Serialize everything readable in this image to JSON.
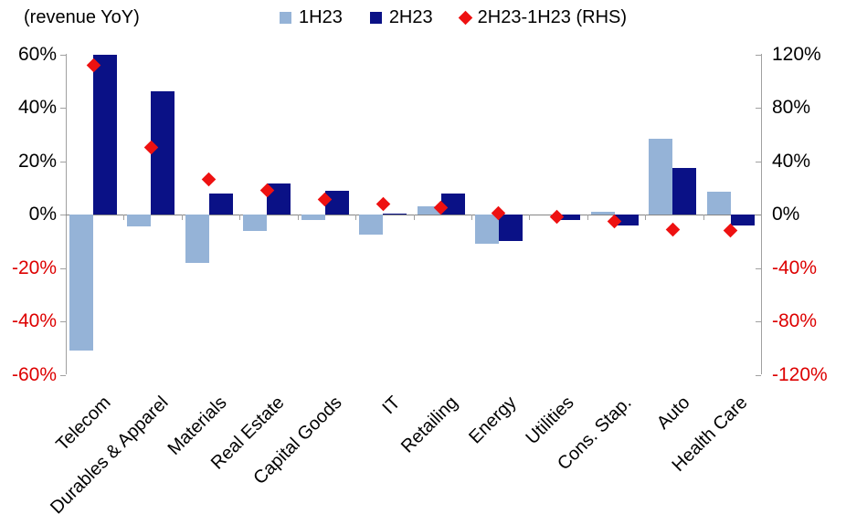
{
  "title": "(revenue YoY)",
  "legend": {
    "items": [
      {
        "label": "1H23",
        "marker": "square-light"
      },
      {
        "label": "2H23",
        "marker": "square-dark"
      },
      {
        "label": "2H23-1H23 (RHS)",
        "marker": "diamond-red"
      }
    ]
  },
  "colors": {
    "bar_1h23": "#95b3d7",
    "bar_2h23": "#0a1186",
    "diamond": "#ee1111",
    "positive_tick_label": "#000000",
    "negative_tick_label": "#dd0000",
    "axis_line": "#a0a0a0",
    "zero_line": "#858585"
  },
  "chart_data": {
    "type": "bar",
    "title": "(revenue YoY)",
    "categories": [
      "Telecom",
      "Durables & Apparel",
      "Materials",
      "Real Estate",
      "Capital Goods",
      "IT",
      "Retailing",
      "Energy",
      "Utilities",
      "Cons. Stap.",
      "Auto",
      "Health Care"
    ],
    "series": [
      {
        "name": "1H23",
        "type": "bar",
        "axis": "left",
        "color": "#95b3d7",
        "values": [
          -51,
          -4.5,
          -18,
          -6,
          -2,
          -7.5,
          3,
          -11,
          0,
          1,
          28.5,
          8.5
        ]
      },
      {
        "name": "2H23",
        "type": "bar",
        "axis": "left",
        "color": "#0a1186",
        "values": [
          60,
          46,
          8,
          11.5,
          9,
          0.5,
          8,
          -10,
          -2,
          -4,
          17.5,
          -4
        ]
      },
      {
        "name": "2H23-1H23 (RHS)",
        "type": "scatter",
        "marker": "diamond",
        "axis": "right",
        "color": "#ee1111",
        "values": [
          112,
          50,
          26,
          18,
          11,
          8,
          5,
          1,
          -2,
          -5,
          -11,
          -12
        ]
      }
    ],
    "left_axis": {
      "min": -60,
      "max": 60,
      "tick_values": [
        60,
        40,
        20,
        0,
        -20,
        -40,
        -60
      ],
      "tick_labels": [
        "60%",
        "40%",
        "20%",
        "0%",
        "-20%",
        "-40%",
        "-60%"
      ]
    },
    "right_axis": {
      "min": -120,
      "max": 120,
      "tick_values": [
        120,
        80,
        40,
        0,
        -40,
        -80,
        -120
      ],
      "tick_labels": [
        "120%",
        "80%",
        "40%",
        "0%",
        "-40%",
        "-80%",
        "-120%"
      ]
    },
    "grid": false,
    "legend_position": "top"
  }
}
